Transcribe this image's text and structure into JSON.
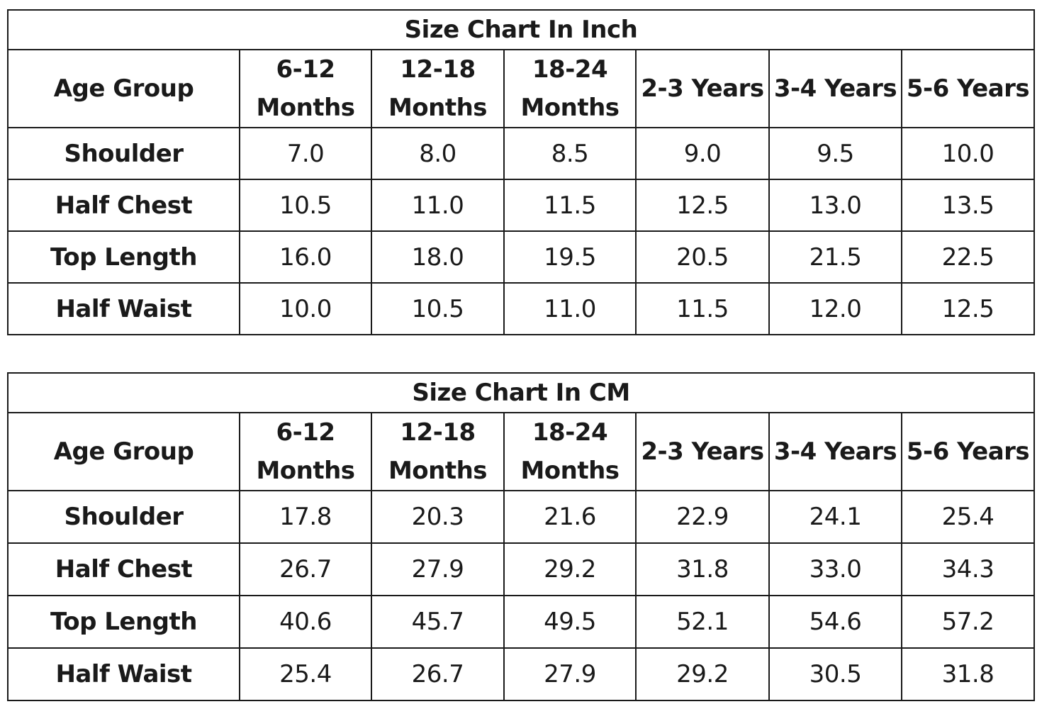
{
  "tables": [
    {
      "title": "Size Chart In Inch",
      "corner_label": "Age Group",
      "columns": [
        {
          "line1": "6-12",
          "line2": "Months"
        },
        {
          "line1": "12-18",
          "line2": "Months"
        },
        {
          "line1": "18-24",
          "line2": "Months"
        },
        {
          "line1": "2-3 Years",
          "line2": ""
        },
        {
          "line1": "3-4 Years",
          "line2": ""
        },
        {
          "line1": "5-6 Years",
          "line2": ""
        }
      ],
      "rows": [
        {
          "label": "Shoulder",
          "values": [
            "7.0",
            "8.0",
            "8.5",
            "9.0",
            "9.5",
            "10.0"
          ]
        },
        {
          "label": "Half Chest",
          "values": [
            "10.5",
            "11.0",
            "11.5",
            "12.5",
            "13.0",
            "13.5"
          ]
        },
        {
          "label": "Top Length",
          "values": [
            "16.0",
            "18.0",
            "19.5",
            "20.5",
            "21.5",
            "22.5"
          ]
        },
        {
          "label": "Half Waist",
          "values": [
            "10.0",
            "10.5",
            "11.0",
            "11.5",
            "12.0",
            "12.5"
          ]
        }
      ]
    },
    {
      "title": "Size Chart In CM",
      "corner_label": "Age Group",
      "columns": [
        {
          "line1": "6-12",
          "line2": "Months"
        },
        {
          "line1": "12-18",
          "line2": "Months"
        },
        {
          "line1": "18-24",
          "line2": "Months"
        },
        {
          "line1": "2-3 Years",
          "line2": ""
        },
        {
          "line1": "3-4 Years",
          "line2": ""
        },
        {
          "line1": "5-6 Years",
          "line2": ""
        }
      ],
      "rows": [
        {
          "label": "Shoulder",
          "values": [
            "17.8",
            "20.3",
            "21.6",
            "22.9",
            "24.1",
            "25.4"
          ]
        },
        {
          "label": "Half Chest",
          "values": [
            "26.7",
            "27.9",
            "29.2",
            "31.8",
            "33.0",
            "34.3"
          ]
        },
        {
          "label": "Top Length",
          "values": [
            "40.6",
            "45.7",
            "49.5",
            "52.1",
            "54.6",
            "57.2"
          ]
        },
        {
          "label": "Half Waist",
          "values": [
            "25.4",
            "26.7",
            "27.9",
            "29.2",
            "30.5",
            "31.8"
          ]
        }
      ]
    }
  ]
}
